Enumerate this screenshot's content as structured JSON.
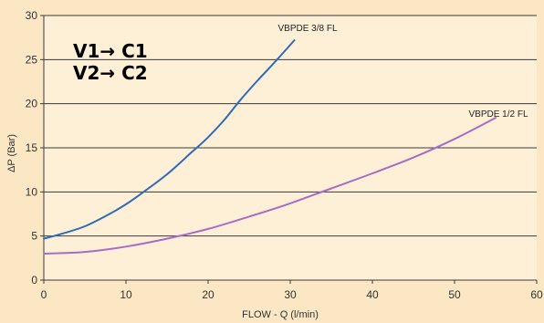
{
  "chart_data": {
    "type": "line",
    "xlabel": "FLOW - Q (l/min)",
    "ylabel": "ΔP (Bar)",
    "xlim": [
      0,
      60
    ],
    "ylim": [
      0,
      30
    ],
    "xticks": [
      "0",
      "10",
      "20",
      "30",
      "40",
      "50",
      "60"
    ],
    "yticks": [
      "0",
      "5",
      "10",
      "15",
      "20",
      "25",
      "30"
    ],
    "grid": "horizontal",
    "series": [
      {
        "name": "VBPDE 3/8 FL",
        "color": "#2f6bb8",
        "x": [
          0,
          2,
          5,
          8,
          10,
          12,
          15,
          18,
          20,
          22,
          24,
          26,
          28,
          30.5
        ],
        "y": [
          4.7,
          5.2,
          6.1,
          7.5,
          8.6,
          9.9,
          12.0,
          14.5,
          16.2,
          18.2,
          20.5,
          22.6,
          24.6,
          27.2
        ]
      },
      {
        "name": "VBPDE 1/2 FL",
        "color": "#a86cc4",
        "x": [
          0,
          5,
          10,
          15,
          20,
          25,
          30,
          35,
          40,
          45,
          50,
          55
        ],
        "y": [
          3.0,
          3.2,
          3.8,
          4.7,
          5.8,
          7.2,
          8.7,
          10.4,
          12.1,
          13.9,
          16.0,
          18.4
        ]
      }
    ],
    "annotations": [
      "V1→ C1",
      "V2→ C2"
    ]
  }
}
